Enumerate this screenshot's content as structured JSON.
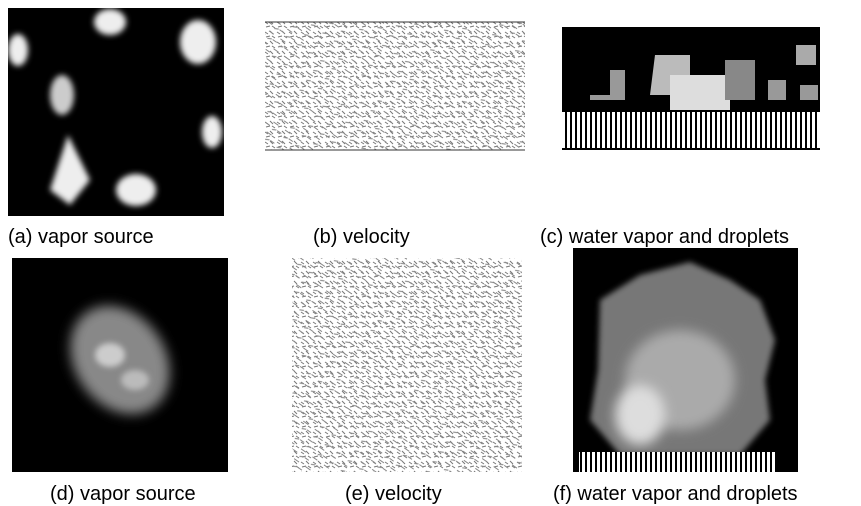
{
  "panels": [
    {
      "caption": "(a) vapor source"
    },
    {
      "caption": "(b) velocity"
    },
    {
      "caption": "(c) water vapor and droplets"
    },
    {
      "caption": "(d) vapor source"
    },
    {
      "caption": "(e) velocity"
    },
    {
      "caption": "(f) water vapor and droplets"
    }
  ]
}
